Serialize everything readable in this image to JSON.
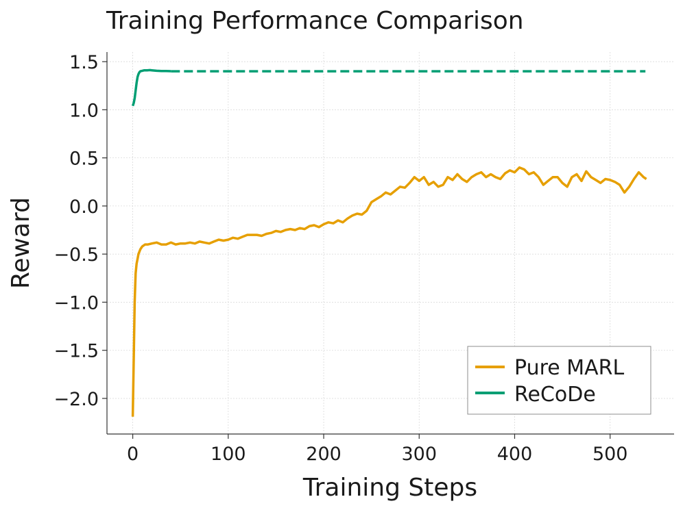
{
  "chart_data": {
    "type": "line",
    "title": "Training Performance Comparison",
    "xlabel": "Training Steps",
    "ylabel": "Reward",
    "xlim": [
      -27,
      567
    ],
    "ylim": [
      -2.37,
      1.6
    ],
    "xticks": [
      0,
      100,
      200,
      300,
      400,
      500
    ],
    "xtick_labels": [
      "0",
      "100",
      "200",
      "300",
      "400",
      "500"
    ],
    "yticks": [
      -2.0,
      -1.5,
      -1.0,
      -0.5,
      0.0,
      0.5,
      1.0,
      1.5
    ],
    "ytick_labels": [
      "−2.0",
      "−1.5",
      "−1.0",
      "−0.5",
      "0.0",
      "0.5",
      "1.0",
      "1.5"
    ],
    "grid": true,
    "legend": {
      "placement": "lower-right"
    },
    "series": [
      {
        "name": "Pure MARL",
        "color": "#E69F00",
        "style": "solid",
        "x": [
          0,
          1,
          2,
          3,
          4,
          5,
          6,
          8,
          10,
          13,
          16,
          20,
          25,
          30,
          35,
          40,
          45,
          50,
          55,
          60,
          65,
          70,
          75,
          80,
          85,
          90,
          95,
          100,
          105,
          110,
          115,
          120,
          125,
          130,
          135,
          140,
          145,
          150,
          155,
          160,
          165,
          170,
          175,
          180,
          185,
          190,
          195,
          200,
          205,
          210,
          215,
          220,
          225,
          230,
          235,
          240,
          245,
          250,
          255,
          260,
          265,
          270,
          275,
          280,
          285,
          290,
          295,
          300,
          305,
          310,
          315,
          320,
          325,
          330,
          335,
          340,
          345,
          350,
          355,
          360,
          365,
          370,
          375,
          380,
          385,
          390,
          395,
          400,
          405,
          410,
          415,
          420,
          425,
          430,
          435,
          440,
          445,
          450,
          455,
          460,
          465,
          470,
          475,
          480,
          485,
          490,
          495,
          500,
          505,
          510,
          515,
          520,
          525,
          530,
          535,
          538
        ],
        "y": [
          -2.19,
          -1.6,
          -1.0,
          -0.7,
          -0.6,
          -0.55,
          -0.5,
          -0.45,
          -0.42,
          -0.4,
          -0.4,
          -0.39,
          -0.38,
          -0.4,
          -0.4,
          -0.38,
          -0.4,
          -0.39,
          -0.39,
          -0.38,
          -0.39,
          -0.37,
          -0.38,
          -0.39,
          -0.37,
          -0.35,
          -0.36,
          -0.35,
          -0.33,
          -0.34,
          -0.32,
          -0.3,
          -0.3,
          -0.3,
          -0.31,
          -0.29,
          -0.28,
          -0.26,
          -0.27,
          -0.25,
          -0.24,
          -0.25,
          -0.23,
          -0.24,
          -0.21,
          -0.2,
          -0.22,
          -0.19,
          -0.17,
          -0.18,
          -0.15,
          -0.17,
          -0.13,
          -0.1,
          -0.08,
          -0.09,
          -0.05,
          0.04,
          0.07,
          0.1,
          0.14,
          0.12,
          0.16,
          0.2,
          0.19,
          0.24,
          0.3,
          0.26,
          0.3,
          0.22,
          0.25,
          0.2,
          0.22,
          0.3,
          0.27,
          0.33,
          0.28,
          0.25,
          0.3,
          0.33,
          0.35,
          0.3,
          0.33,
          0.3,
          0.28,
          0.34,
          0.37,
          0.35,
          0.4,
          0.38,
          0.33,
          0.35,
          0.3,
          0.22,
          0.26,
          0.3,
          0.3,
          0.24,
          0.2,
          0.3,
          0.33,
          0.26,
          0.36,
          0.3,
          0.27,
          0.24,
          0.28,
          0.27,
          0.25,
          0.22,
          0.14,
          0.2,
          0.28,
          0.35,
          0.3,
          0.28
        ]
      },
      {
        "name": "ReCoDe",
        "color": "#009E73",
        "style": "solid",
        "x": [
          0,
          1,
          2,
          3,
          4,
          5,
          6,
          7,
          8,
          10,
          12,
          15,
          18,
          20,
          25,
          30,
          35,
          40
        ],
        "y": [
          1.04,
          1.07,
          1.12,
          1.2,
          1.28,
          1.34,
          1.37,
          1.39,
          1.4,
          1.405,
          1.41,
          1.41,
          1.412,
          1.41,
          1.405,
          1.403,
          1.402,
          1.401
        ]
      },
      {
        "name": "",
        "color": "#009E73",
        "style": "dashed",
        "x": [
          40,
          537
        ],
        "y": [
          1.4,
          1.4
        ]
      }
    ]
  }
}
